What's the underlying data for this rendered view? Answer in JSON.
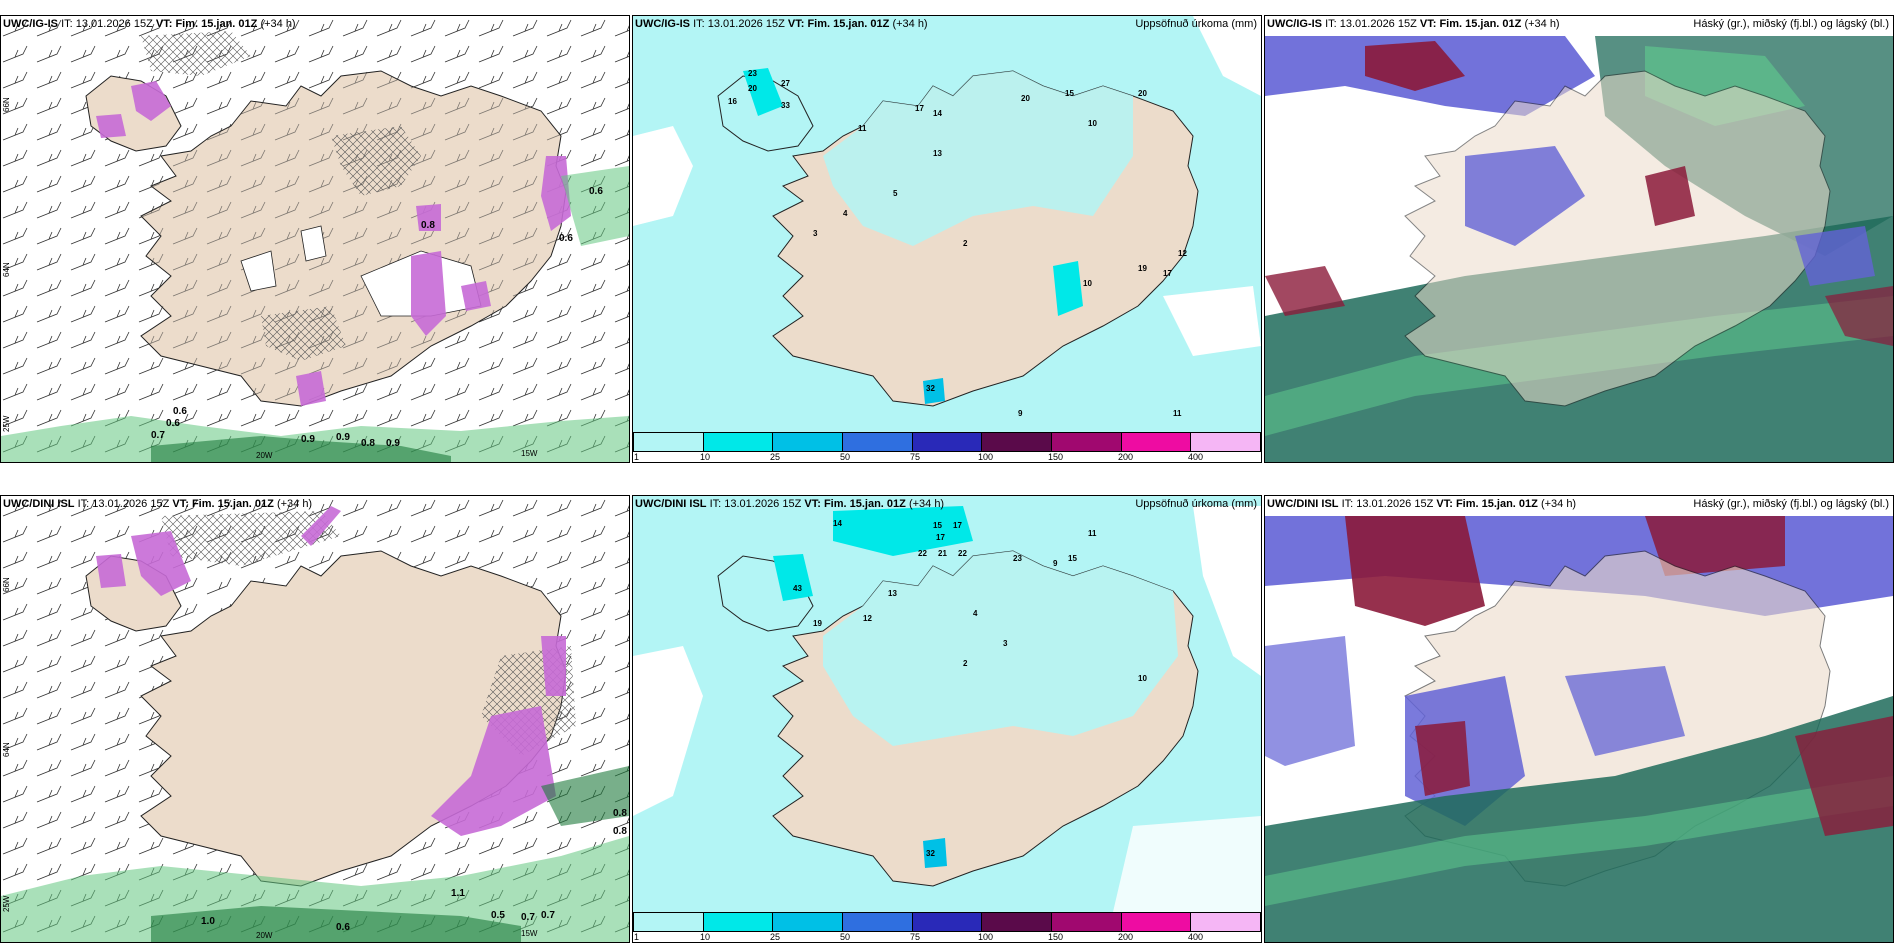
{
  "rows": [
    {
      "model": "UWC/IG-IS",
      "it_label": "IT:",
      "it_value": "13.01.2026 15Z",
      "vt_label": "VT:",
      "vt_value": "Fim. 15.jan. 01Z",
      "lead": "(+34 h)"
    },
    {
      "model": "UWC/DINI ISL",
      "it_label": "IT:",
      "it_value": "13.01.2026 15Z",
      "vt_label": "VT:",
      "vt_value": "Fim. 15.jan. 01Z",
      "lead": "(+34 h)"
    }
  ],
  "variables": {
    "precip": "Uppsöfnuð úrkoma (mm)",
    "clouds": "Háský (gr.), miðský (fj.bl.) og lágský (bl.)"
  },
  "colorbar": {
    "ticks": [
      "1",
      "10",
      "25",
      "50",
      "75",
      "100",
      "150",
      "200",
      "400"
    ],
    "colors": [
      "#b3f5f5",
      "#00e8e8",
      "#00c0e6",
      "#2f6fe0",
      "#2929b8",
      "#5a0a4a",
      "#a0086f",
      "#ee0ca2",
      "#f5b6f5"
    ]
  },
  "gridlabels": {
    "lat66": "66N",
    "lat64": "64N",
    "lon20": "20W",
    "lon15": "15W",
    "lon25": "25W"
  },
  "colors": {
    "land": "#ecdccb",
    "sea": "#ffffff",
    "precip_light": "#b3f5f5",
    "snow_magenta": "#c66ad6",
    "rain_green": "#63c77f",
    "high_cloud": "#6363d6",
    "mid_cloud": "#8b1a3a",
    "low_cloud": "#1f6b5a"
  },
  "labels": {
    "p1": [
      "0.6",
      "0.6",
      "0.7",
      "0.9",
      "0.9",
      "0.8",
      "0.9",
      "0.6",
      "0.6",
      "0.8"
    ],
    "p2": [
      "23",
      "27",
      "33",
      "20",
      "16",
      "17",
      "14",
      "20",
      "15",
      "10",
      "11",
      "13",
      "12",
      "19",
      "17",
      "10",
      "5",
      "4",
      "2",
      "3",
      "9",
      "11",
      "32",
      "20"
    ],
    "p4": [
      "0.8",
      "0.8",
      "0.5",
      "0.7",
      "0.7",
      "0.6",
      "1.0",
      "1.1"
    ],
    "p5": [
      "14",
      "15",
      "17",
      "17",
      "22",
      "21",
      "22",
      "23",
      "15",
      "43",
      "19",
      "13",
      "12",
      "11",
      "10",
      "4",
      "3",
      "2",
      "9",
      "32"
    ]
  }
}
